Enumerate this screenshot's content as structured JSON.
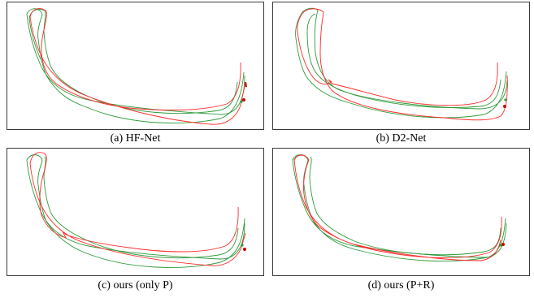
{
  "panels": {
    "a": {
      "caption": "(a) HF-Net"
    },
    "b": {
      "caption": "(b) D2-Net"
    },
    "c": {
      "caption": "(c) ours (only P)"
    },
    "d": {
      "caption": "(d) ours (P+R)"
    }
  },
  "colors": {
    "ground_truth": "#2e9a3a",
    "estimated": "#ff2a2a",
    "frame": "#3a3a3a",
    "endpoint_marker": "#cc0000"
  }
}
